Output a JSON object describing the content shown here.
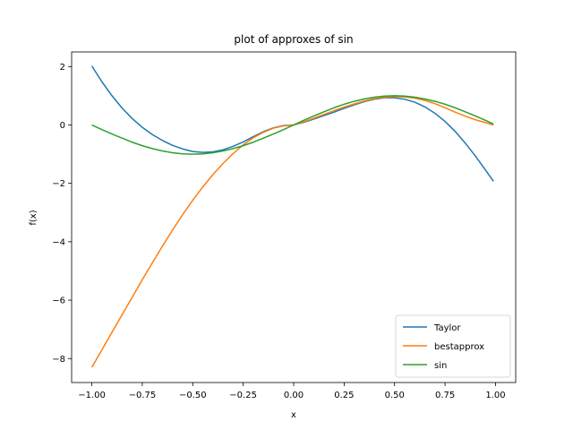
{
  "chart_data": {
    "type": "line",
    "title": "plot of approxes of sin",
    "xlabel": "x",
    "ylabel": "f(x)",
    "xlim": [
      -1.1,
      1.1
    ],
    "ylim": [
      -8.82,
      2.5
    ],
    "xticks": [
      -1.0,
      -0.75,
      -0.5,
      -0.25,
      0.0,
      0.25,
      0.5,
      0.75,
      1.0
    ],
    "xtick_labels": [
      "−1.00",
      "−0.75",
      "−0.50",
      "−0.25",
      "0.00",
      "0.25",
      "0.50",
      "0.75",
      "1.00"
    ],
    "yticks": [
      -8,
      -6,
      -4,
      -2,
      0,
      2
    ],
    "ytick_labels": [
      "−8",
      "−6",
      "−4",
      "−2",
      "0",
      "2"
    ],
    "grid": false,
    "legend_position": "lower-right",
    "x": [
      -1.0,
      -0.95,
      -0.9,
      -0.85,
      -0.8,
      -0.75,
      -0.7,
      -0.65,
      -0.6,
      -0.55,
      -0.5,
      -0.45,
      -0.4,
      -0.35,
      -0.3,
      -0.25,
      -0.2,
      -0.15,
      -0.1,
      -0.05,
      0.0,
      0.05,
      0.1,
      0.15,
      0.2,
      0.25,
      0.3,
      0.35,
      0.4,
      0.45,
      0.5,
      0.55,
      0.6,
      0.65,
      0.7,
      0.75,
      0.8,
      0.85,
      0.9,
      0.95,
      0.99
    ],
    "series": [
      {
        "name": "Taylor",
        "color": "#1f77b4",
        "values": [
          2.02,
          1.48,
          1.0,
          0.58,
          0.22,
          -0.08,
          -0.33,
          -0.53,
          -0.7,
          -0.82,
          -0.91,
          -0.94,
          -0.92,
          -0.85,
          -0.73,
          -0.58,
          -0.4,
          -0.23,
          -0.1,
          -0.02,
          0.0,
          0.09,
          0.2,
          0.32,
          0.44,
          0.57,
          0.69,
          0.8,
          0.88,
          0.93,
          0.93,
          0.88,
          0.78,
          0.62,
          0.4,
          0.12,
          -0.22,
          -0.62,
          -1.06,
          -1.54,
          -1.93
        ]
      },
      {
        "name": "bestapprox",
        "color": "#ff7f0e",
        "values": [
          -8.3,
          -7.7,
          -7.1,
          -6.5,
          -5.9,
          -5.3,
          -4.72,
          -4.15,
          -3.6,
          -3.07,
          -2.58,
          -2.12,
          -1.7,
          -1.32,
          -0.98,
          -0.68,
          -0.44,
          -0.25,
          -0.11,
          -0.03,
          0.0,
          0.11,
          0.23,
          0.36,
          0.49,
          0.61,
          0.72,
          0.82,
          0.9,
          0.95,
          0.97,
          0.96,
          0.92,
          0.84,
          0.73,
          0.59,
          0.44,
          0.3,
          0.18,
          0.08,
          0.0
        ]
      },
      {
        "name": "sin",
        "color": "#2ca02c",
        "values": [
          0.0,
          -0.16,
          -0.31,
          -0.45,
          -0.59,
          -0.71,
          -0.81,
          -0.89,
          -0.95,
          -0.99,
          -1.0,
          -0.99,
          -0.95,
          -0.89,
          -0.81,
          -0.71,
          -0.59,
          -0.45,
          -0.31,
          -0.16,
          0.0,
          0.16,
          0.31,
          0.45,
          0.59,
          0.71,
          0.81,
          0.89,
          0.95,
          0.99,
          1.0,
          0.99,
          0.95,
          0.89,
          0.81,
          0.71,
          0.59,
          0.45,
          0.31,
          0.16,
          0.03
        ]
      }
    ]
  }
}
